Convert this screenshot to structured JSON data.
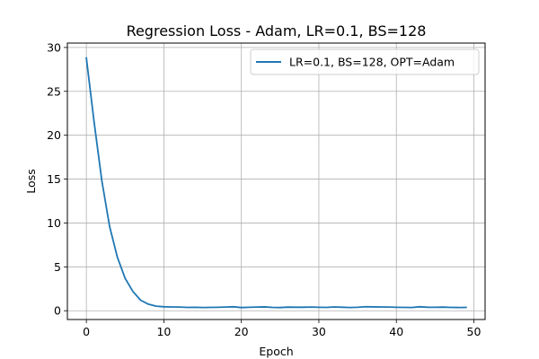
{
  "chart_data": {
    "type": "line",
    "title": "Regression Loss - Adam, LR=0.1, BS=128",
    "xlabel": "Epoch",
    "ylabel": "Loss",
    "xlim": [
      -2.45,
      51.45
    ],
    "ylim": [
      -1.0,
      30.5
    ],
    "xticks": [
      0,
      10,
      20,
      30,
      40,
      50
    ],
    "yticks": [
      0,
      5,
      10,
      15,
      20,
      25,
      30
    ],
    "grid": true,
    "legend_position": "top-right",
    "series": [
      {
        "name": "LR=0.1, BS=128, OPT=Adam",
        "color": "#1f77b4",
        "x": [
          0,
          1,
          2,
          3,
          4,
          5,
          6,
          7,
          8,
          9,
          10,
          11,
          12,
          13,
          14,
          15,
          16,
          17,
          18,
          19,
          20,
          21,
          22,
          23,
          24,
          25,
          26,
          27,
          28,
          29,
          30,
          31,
          32,
          33,
          34,
          35,
          36,
          37,
          38,
          39,
          40,
          41,
          42,
          43,
          44,
          45,
          46,
          47,
          48,
          49
        ],
        "y": [
          28.8,
          21.5,
          14.8,
          9.6,
          6.1,
          3.7,
          2.2,
          1.2,
          0.75,
          0.52,
          0.45,
          0.43,
          0.42,
          0.38,
          0.39,
          0.37,
          0.38,
          0.39,
          0.42,
          0.45,
          0.36,
          0.39,
          0.42,
          0.44,
          0.38,
          0.36,
          0.41,
          0.4,
          0.4,
          0.42,
          0.39,
          0.38,
          0.43,
          0.4,
          0.37,
          0.39,
          0.46,
          0.44,
          0.43,
          0.42,
          0.39,
          0.38,
          0.37,
          0.45,
          0.4,
          0.39,
          0.41,
          0.38,
          0.37,
          0.38
        ]
      }
    ]
  }
}
